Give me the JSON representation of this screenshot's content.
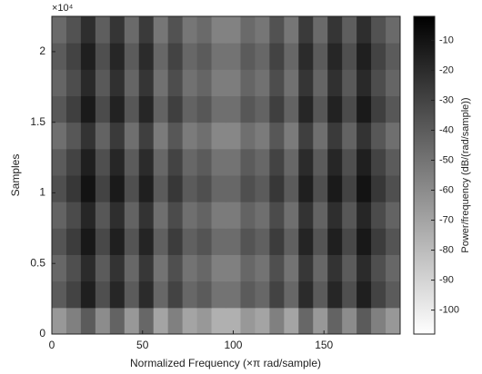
{
  "chart_data": {
    "type": "heatmap",
    "xlabel": "Normalized Frequency  (×π rad/sample)",
    "ylabel": "Samples",
    "y_multiplier": "×10⁴",
    "colorbar_label": "Power/frequency (dB/(rad/sample))",
    "xlim": [
      0,
      192
    ],
    "xticks": [
      0,
      50,
      100,
      150
    ],
    "ylim": [
      0,
      22500
    ],
    "yticks": [
      0,
      {
        "value": 5000,
        "label": "0.5"
      },
      {
        "value": 10000,
        "label": "1"
      },
      {
        "value": 15000,
        "label": "1.5"
      },
      {
        "value": 20000,
        "label": "2"
      }
    ],
    "clim": [
      -108,
      -2
    ],
    "cticks": [
      -10,
      -20,
      -30,
      -40,
      -50,
      -60,
      -70,
      -80,
      -90,
      -100
    ],
    "colormap": [
      "#ffffff",
      "#000000"
    ],
    "x": [
      4,
      12,
      20,
      28,
      36,
      44,
      52,
      60,
      68,
      76,
      84,
      92,
      100,
      108,
      116,
      124,
      132,
      140,
      148,
      156,
      164,
      172,
      180,
      188
    ],
    "y": [
      937.5,
      2812.5,
      4687.5,
      6562.5,
      8437.5,
      10312.5,
      12187.5,
      14062.5,
      15937.5,
      17812.5,
      19687.5,
      21562.5
    ],
    "z": [
      [
        -65,
        -55,
        -40,
        -60,
        -43,
        -65,
        -45,
        -70,
        -55,
        -70,
        -65,
        -75,
        -75,
        -65,
        -70,
        -55,
        -70,
        -45,
        -65,
        -43,
        -60,
        -40,
        -55,
        -65
      ],
      [
        -40,
        -30,
        -15,
        -35,
        -18,
        -40,
        -20,
        -45,
        -30,
        -45,
        -40,
        -50,
        -50,
        -40,
        -45,
        -30,
        -45,
        -20,
        -40,
        -18,
        -35,
        -15,
        -30,
        -40
      ],
      [
        -45,
        -35,
        -20,
        -40,
        -23,
        -45,
        -25,
        -50,
        -35,
        -50,
        -45,
        -55,
        -55,
        -45,
        -50,
        -35,
        -50,
        -25,
        -45,
        -23,
        -40,
        -20,
        -35,
        -45
      ],
      [
        -37,
        -27,
        -12,
        -32,
        -15,
        -37,
        -17,
        -42,
        -27,
        -42,
        -37,
        -47,
        -47,
        -37,
        -42,
        -27,
        -42,
        -17,
        -37,
        -15,
        -32,
        -12,
        -27,
        -37
      ],
      [
        -43,
        -33,
        -18,
        -38,
        -21,
        -43,
        -23,
        -48,
        -33,
        -48,
        -43,
        -53,
        -53,
        -43,
        -48,
        -33,
        -48,
        -23,
        -43,
        -21,
        -38,
        -18,
        -33,
        -43
      ],
      [
        -35,
        -25,
        -10,
        -30,
        -13,
        -35,
        -15,
        -40,
        -25,
        -40,
        -35,
        -45,
        -45,
        -35,
        -40,
        -25,
        -40,
        -15,
        -35,
        -13,
        -30,
        -10,
        -25,
        -35
      ],
      [
        -40,
        -30,
        -15,
        -35,
        -18,
        -40,
        -20,
        -45,
        -30,
        -45,
        -40,
        -50,
        -50,
        -40,
        -45,
        -30,
        -45,
        -20,
        -40,
        -18,
        -35,
        -15,
        -30,
        -40
      ],
      [
        -48,
        -38,
        -23,
        -43,
        -26,
        -48,
        -28,
        -53,
        -38,
        -53,
        -48,
        -58,
        -58,
        -48,
        -53,
        -38,
        -53,
        -28,
        -48,
        -26,
        -43,
        -23,
        -38,
        -48
      ],
      [
        -38,
        -28,
        -13,
        -33,
        -16,
        -38,
        -18,
        -43,
        -28,
        -43,
        -38,
        -48,
        -48,
        -38,
        -43,
        -28,
        -43,
        -18,
        -38,
        -16,
        -33,
        -13,
        -28,
        -38
      ],
      [
        -44,
        -34,
        -19,
        -39,
        -22,
        -44,
        -24,
        -49,
        -34,
        -49,
        -44,
        -54,
        -54,
        -44,
        -49,
        -34,
        -49,
        -24,
        -44,
        -22,
        -39,
        -19,
        -34,
        -44
      ],
      [
        -40,
        -30,
        -15,
        -35,
        -18,
        -40,
        -20,
        -45,
        -30,
        -45,
        -40,
        -50,
        -50,
        -40,
        -45,
        -30,
        -45,
        -20,
        -40,
        -18,
        -35,
        -15,
        -30,
        -40
      ],
      [
        -46,
        -36,
        -21,
        -41,
        -24,
        -46,
        -26,
        -51,
        -36,
        -51,
        -46,
        -56,
        -56,
        -46,
        -51,
        -36,
        -51,
        -26,
        -46,
        -24,
        -41,
        -21,
        -36,
        -46
      ]
    ]
  }
}
